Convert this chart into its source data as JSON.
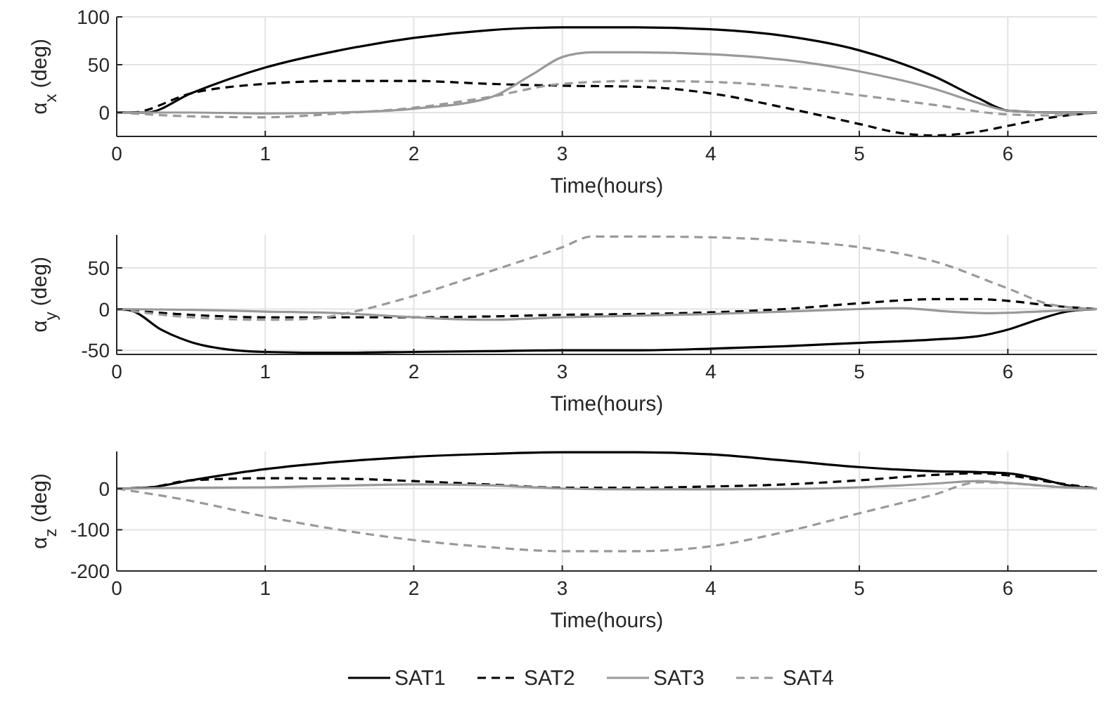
{
  "chart_data": [
    {
      "type": "line",
      "xlabel": "Time(hours)",
      "ylabel": "α$_{x}$ (deg)",
      "xlim": [
        0,
        6.6
      ],
      "xticks": [
        0,
        1,
        2,
        3,
        4,
        5,
        6
      ],
      "ylim": [
        -25,
        100
      ],
      "yticks": [
        0,
        50,
        100
      ],
      "grid": true,
      "legend": false,
      "series": [
        {
          "color": "#000000",
          "line_style": "solid",
          "x": [
            0,
            0.2,
            0.5,
            1,
            1.5,
            2,
            2.5,
            3,
            3.5,
            4,
            4.5,
            5,
            5.5,
            5.8,
            6,
            6.3,
            6.6
          ],
          "values": [
            0,
            0,
            20,
            47,
            65,
            78,
            86,
            89,
            89,
            87,
            80,
            65,
            38,
            15,
            2,
            0,
            0
          ]
        },
        {
          "color": "#000000",
          "line_style": "dashed",
          "x": [
            0,
            0.1,
            0.5,
            1,
            1.5,
            2,
            2.5,
            3,
            3.5,
            4,
            4.5,
            5,
            5.3,
            5.5,
            5.8,
            6,
            6.3,
            6.6
          ],
          "values": [
            0,
            0,
            20,
            30,
            33,
            33,
            30,
            28,
            27,
            20,
            5,
            -12,
            -22,
            -24,
            -20,
            -14,
            -5,
            0
          ]
        },
        {
          "color": "#999999",
          "line_style": "solid",
          "x": [
            0,
            0.5,
            1,
            1.5,
            2,
            2.5,
            2.8,
            3,
            3.2,
            3.5,
            4,
            4.5,
            5,
            5.5,
            5.8,
            6,
            6.3,
            6.6
          ],
          "values": [
            0,
            0,
            -1,
            0,
            4,
            15,
            40,
            58,
            63,
            63,
            61,
            55,
            43,
            25,
            10,
            2,
            0,
            0
          ]
        },
        {
          "color": "#999999",
          "line_style": "dashed",
          "x": [
            0,
            0.5,
            1,
            1.5,
            2,
            2.5,
            3,
            3.5,
            4,
            4.5,
            5,
            5.5,
            6,
            6.3,
            6.6
          ],
          "values": [
            0,
            -4,
            -5,
            -1,
            5,
            16,
            30,
            33,
            32,
            27,
            18,
            8,
            -2,
            -3,
            0
          ]
        }
      ]
    },
    {
      "type": "line",
      "xlabel": "Time(hours)",
      "ylabel": "α$_{y}$ (deg)",
      "xlim": [
        0,
        6.6
      ],
      "xticks": [
        0,
        1,
        2,
        3,
        4,
        5,
        6
      ],
      "ylim": [
        -55,
        90
      ],
      "yticks": [
        -50,
        0,
        50
      ],
      "grid": true,
      "legend": false,
      "series": [
        {
          "color": "#000000",
          "line_style": "solid",
          "x": [
            0,
            0.1,
            0.3,
            0.5,
            0.8,
            1,
            1.5,
            2,
            2.5,
            3,
            3.5,
            4,
            4.5,
            5,
            5.5,
            5.8,
            6,
            6.2,
            6.4,
            6.6
          ],
          "values": [
            0,
            -2,
            -25,
            -40,
            -50,
            -52,
            -53,
            -52,
            -51,
            -50,
            -50,
            -48,
            -45,
            -41,
            -37,
            -33,
            -25,
            -13,
            -3,
            0
          ]
        },
        {
          "color": "#000000",
          "line_style": "dashed",
          "x": [
            0,
            0.5,
            1,
            1.5,
            2,
            2.5,
            3,
            3.5,
            4,
            4.5,
            5,
            5.5,
            5.8,
            6,
            6.3,
            6.6
          ],
          "values": [
            0,
            -7,
            -10,
            -10,
            -10,
            -9,
            -7,
            -6,
            -4,
            0,
            7,
            12,
            12,
            10,
            4,
            0
          ]
        },
        {
          "color": "#999999",
          "line_style": "solid",
          "x": [
            0,
            0.5,
            1,
            1.5,
            2,
            2.5,
            3,
            3.5,
            4,
            4.5,
            5,
            5.3,
            5.6,
            5.9,
            6.2,
            6.6
          ],
          "values": [
            0,
            -1,
            -3,
            -5,
            -10,
            -13,
            -10,
            -8,
            -6,
            -3,
            0,
            1,
            -3,
            -5,
            -3,
            0
          ]
        },
        {
          "color": "#999999",
          "line_style": "dashed",
          "x": [
            0,
            0.5,
            1,
            1.3,
            1.6,
            2,
            2.5,
            3,
            3.2,
            3.5,
            4,
            4.5,
            5,
            5.5,
            6,
            6.3,
            6.6
          ],
          "values": [
            0,
            -10,
            -13,
            -12,
            -3,
            16,
            45,
            75,
            88,
            88,
            87,
            83,
            75,
            58,
            25,
            5,
            0
          ]
        }
      ]
    },
    {
      "type": "line",
      "xlabel": "Time(hours)",
      "ylabel": "α$_{z}$ (deg)",
      "xlim": [
        0,
        6.6
      ],
      "xticks": [
        0,
        1,
        2,
        3,
        4,
        5,
        6
      ],
      "ylim": [
        -200,
        90
      ],
      "yticks": [
        -200,
        -100,
        0
      ],
      "grid": true,
      "legend": "bottom",
      "series": [
        {
          "name": "SAT1",
          "color": "#000000",
          "line_style": "solid",
          "x": [
            0,
            0.2,
            0.5,
            1,
            1.5,
            2,
            2.5,
            3,
            3.5,
            4,
            4.5,
            5,
            5.5,
            5.8,
            6,
            6.2,
            6.4,
            6.6
          ],
          "values": [
            0,
            2,
            20,
            47,
            65,
            77,
            84,
            88,
            88,
            83,
            68,
            52,
            42,
            40,
            37,
            25,
            8,
            0
          ]
        },
        {
          "name": "SAT2",
          "color": "#000000",
          "line_style": "dashed",
          "x": [
            0,
            0.2,
            0.5,
            1,
            1.5,
            2,
            2.5,
            3,
            3.5,
            4,
            4.5,
            5,
            5.5,
            5.8,
            6,
            6.3,
            6.6
          ],
          "values": [
            0,
            2,
            20,
            25,
            24,
            18,
            10,
            2,
            2,
            5,
            10,
            20,
            33,
            37,
            32,
            15,
            0
          ]
        },
        {
          "name": "SAT3",
          "color": "#999999",
          "line_style": "solid",
          "x": [
            0,
            0.5,
            1,
            1.5,
            2,
            2.5,
            3,
            3.5,
            4,
            4.5,
            5,
            5.5,
            5.8,
            6,
            6.3,
            6.6
          ],
          "values": [
            0,
            2,
            3,
            7,
            10,
            8,
            0,
            -2,
            -2,
            -1,
            3,
            12,
            18,
            14,
            5,
            0
          ]
        },
        {
          "name": "SAT4",
          "color": "#999999",
          "line_style": "dashed",
          "x": [
            0,
            0.5,
            1,
            1.5,
            2,
            2.5,
            3,
            3.5,
            4,
            4.5,
            5,
            5.5,
            5.8,
            6,
            6.3,
            6.6
          ],
          "values": [
            0,
            -30,
            -68,
            -100,
            -125,
            -142,
            -152,
            -152,
            -140,
            -105,
            -60,
            -15,
            15,
            13,
            5,
            0
          ]
        }
      ]
    }
  ]
}
